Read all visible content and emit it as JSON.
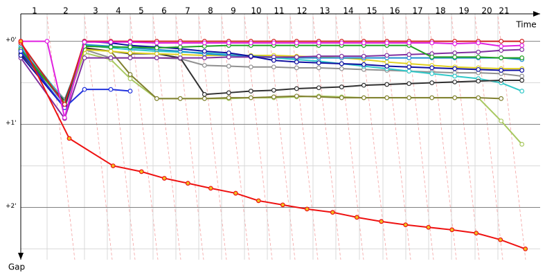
{
  "chart_data": {
    "type": "line",
    "x_label": "Time",
    "y_label": "Gap",
    "xlim": [
      0,
      22.5
    ],
    "ylim": [
      -0.33,
      2.63
    ],
    "xticks": [
      {
        "value": 0.6,
        "label": "1"
      },
      {
        "value": 1.95,
        "label": "2"
      },
      {
        "value": 3.24,
        "label": "3"
      },
      {
        "value": 4.23,
        "label": "4"
      },
      {
        "value": 5.22,
        "label": "5"
      },
      {
        "value": 6.21,
        "label": "6"
      },
      {
        "value": 7.23,
        "label": "7"
      },
      {
        "value": 8.22,
        "label": "8"
      },
      {
        "value": 9.21,
        "label": "9"
      },
      {
        "value": 10.2,
        "label": "10"
      },
      {
        "value": 11.19,
        "label": "11"
      },
      {
        "value": 12.18,
        "label": "12"
      },
      {
        "value": 13.17,
        "label": "13"
      },
      {
        "value": 14.19,
        "label": "14"
      },
      {
        "value": 15.21,
        "label": "15"
      },
      {
        "value": 16.2,
        "label": "16"
      },
      {
        "value": 17.19,
        "label": "17"
      },
      {
        "value": 18.18,
        "label": "18"
      },
      {
        "value": 19.2,
        "label": "19"
      },
      {
        "value": 20.19,
        "label": "20"
      },
      {
        "value": 20.94,
        "label": "21"
      }
    ],
    "xgrid": [
      1.14,
      2.76,
      3.75,
      4.74,
      5.73,
      6.72,
      7.71,
      8.7,
      9.69,
      10.68,
      11.67,
      12.66,
      13.65,
      14.67,
      15.69,
      16.68,
      17.67,
      18.66,
      19.68,
      20.67
    ],
    "yticks": [
      {
        "value": 0,
        "label": "+0'"
      },
      {
        "value": 1,
        "label": "+1'"
      },
      {
        "value": 2,
        "label": "+2'"
      }
    ],
    "minor_yticks": [
      0.5,
      1.5,
      2.5
    ],
    "grid": true,
    "x": [
      0,
      1.9,
      2.76,
      3.9,
      4.74,
      5.89,
      6.91,
      7.96,
      9.01,
      9.97,
      10.96,
      11.95,
      12.91,
      13.9,
      14.86,
      15.86,
      16.82,
      17.81,
      18.8,
      19.82,
      20.81,
      21.71
    ],
    "series": [
      {
        "color": "#909090",
        "values": [
          0.1,
          0.7,
          0.1,
          0.2,
          0.2,
          0.2,
          0.21,
          0.29,
          0.3,
          0.31,
          0.31,
          0.32,
          0.32,
          0.33,
          0.34,
          0.35,
          0.36,
          0.37,
          0.38,
          0.38,
          0.39,
          0.42
        ]
      },
      {
        "color": "#a8c860",
        "values": [
          0.14,
          0.8,
          0.14,
          0.22,
          0.45,
          0.69,
          0.69,
          0.69,
          0.69,
          0.68,
          0.68,
          0.67,
          0.66,
          0.67,
          0.68,
          0.68,
          0.68,
          0.68,
          0.68,
          0.68,
          0.96,
          1.24
        ]
      },
      {
        "color": "#808030",
        "values": [
          0.1,
          0.75,
          0.1,
          0.12,
          0.4,
          0.69,
          0.69,
          0.69,
          0.68,
          0.68,
          0.67,
          0.66,
          0.67,
          0.68,
          0.68,
          0.68,
          0.68,
          0.68,
          0.68,
          0.68,
          0.69,
          null
        ]
      },
      {
        "color": "#30c8c8",
        "values": [
          0.05,
          0.72,
          0.05,
          0.08,
          0.1,
          0.12,
          0.13,
          0.14,
          0.16,
          0.18,
          0.2,
          0.22,
          0.24,
          0.27,
          0.3,
          0.33,
          0.36,
          0.39,
          0.42,
          0.45,
          0.5,
          0.6
        ]
      },
      {
        "color": "#303030",
        "values": [
          0.15,
          0.72,
          0.08,
          0.12,
          0.15,
          0.15,
          0.2,
          0.64,
          0.62,
          0.6,
          0.59,
          0.57,
          0.56,
          0.55,
          0.53,
          0.52,
          0.51,
          0.5,
          0.49,
          0.48,
          0.47,
          0.47
        ]
      },
      {
        "color": "#e0d020",
        "values": [
          0.09,
          0.76,
          0.1,
          0.12,
          0.14,
          0.15,
          0.16,
          0.17,
          0.17,
          0.17,
          0.17,
          0.18,
          0.19,
          0.2,
          0.22,
          0.25,
          0.27,
          0.29,
          0.31,
          0.32,
          0.33,
          0.33
        ]
      },
      {
        "color": "#2090d0",
        "values": [
          0.08,
          0.76,
          0.04,
          0.06,
          0.08,
          0.1,
          0.12,
          0.15,
          0.17,
          0.18,
          0.19,
          0.2,
          0.2,
          0.2,
          0.2,
          0.2,
          0.2,
          0.2,
          0.2,
          0.2,
          0.2,
          0.22
        ]
      },
      {
        "color": "#8030a0",
        "values": [
          0.2,
          0.93,
          0.2,
          0.2,
          0.2,
          0.2,
          0.2,
          0.2,
          0.19,
          0.19,
          0.19,
          0.19,
          0.18,
          0.18,
          0.18,
          0.17,
          0.16,
          0.15,
          0.14,
          0.13,
          0.11,
          0.1
        ]
      },
      {
        "color": "#1010a0",
        "values": [
          0.17,
          0.8,
          0.0,
          0.02,
          0.05,
          0.07,
          0.09,
          0.12,
          0.14,
          0.18,
          0.23,
          0.25,
          0.26,
          0.27,
          0.28,
          0.3,
          0.31,
          0.32,
          0.33,
          0.34,
          0.35,
          0.35
        ]
      },
      {
        "color": "#20a020",
        "values": [
          0.1,
          0.74,
          0.06,
          0.07,
          0.07,
          0.08,
          0.07,
          0.06,
          0.05,
          0.05,
          0.05,
          0.05,
          0.05,
          0.05,
          0.05,
          0.05,
          0.05,
          0.19,
          0.19,
          0.19,
          0.2,
          0.2
        ]
      },
      {
        "color": "#2233dd",
        "values": [
          0.12,
          0.8,
          0.58,
          0.58,
          0.6,
          null,
          null,
          null,
          null,
          null,
          null,
          null,
          null,
          null,
          null,
          null,
          null,
          null,
          null,
          null,
          null,
          null
        ]
      },
      {
        "color": "#d02020",
        "values": [
          0.02,
          0.76,
          0.0,
          0.0,
          0.0,
          0.0,
          0.0,
          0.0,
          0.0,
          0.0,
          0.0,
          0.0,
          0.0,
          0.0,
          0.0,
          0.0,
          0.0,
          0.0,
          0.0,
          0.0,
          0.0,
          0.0
        ]
      },
      {
        "color": "#e020e0",
        "x": [
          0,
          1.14,
          1.9,
          2.76,
          3.9,
          4.74,
          5.89,
          6.91,
          7.96,
          9.01,
          9.97,
          10.96,
          11.95,
          12.91,
          13.9,
          14.86,
          15.86,
          16.82,
          17.81,
          18.8,
          19.82,
          20.81,
          21.71
        ],
        "values": [
          0,
          0,
          0.92,
          0.01,
          0.01,
          0.01,
          0.02,
          0.02,
          0.02,
          0.02,
          0.02,
          0.02,
          0.02,
          0.02,
          0.02,
          0.02,
          0.02,
          0.02,
          0.02,
          0.03,
          0.02,
          0.06,
          0.05
        ]
      },
      {
        "color": "#ee1111",
        "marker_fill": "#f0c020",
        "x": [
          0,
          2.1,
          4.0,
          5.23,
          6.22,
          7.24,
          8.23,
          9.31,
          10.3,
          11.35,
          12.4,
          13.51,
          14.56,
          15.62,
          16.67,
          17.66,
          18.68,
          19.73,
          20.78,
          21.86
        ],
        "values": [
          0,
          1.17,
          1.5,
          1.57,
          1.65,
          1.71,
          1.77,
          1.83,
          1.92,
          1.97,
          2.02,
          2.06,
          2.12,
          2.17,
          2.21,
          2.24,
          2.27,
          2.31,
          2.39,
          2.5
        ]
      }
    ]
  }
}
